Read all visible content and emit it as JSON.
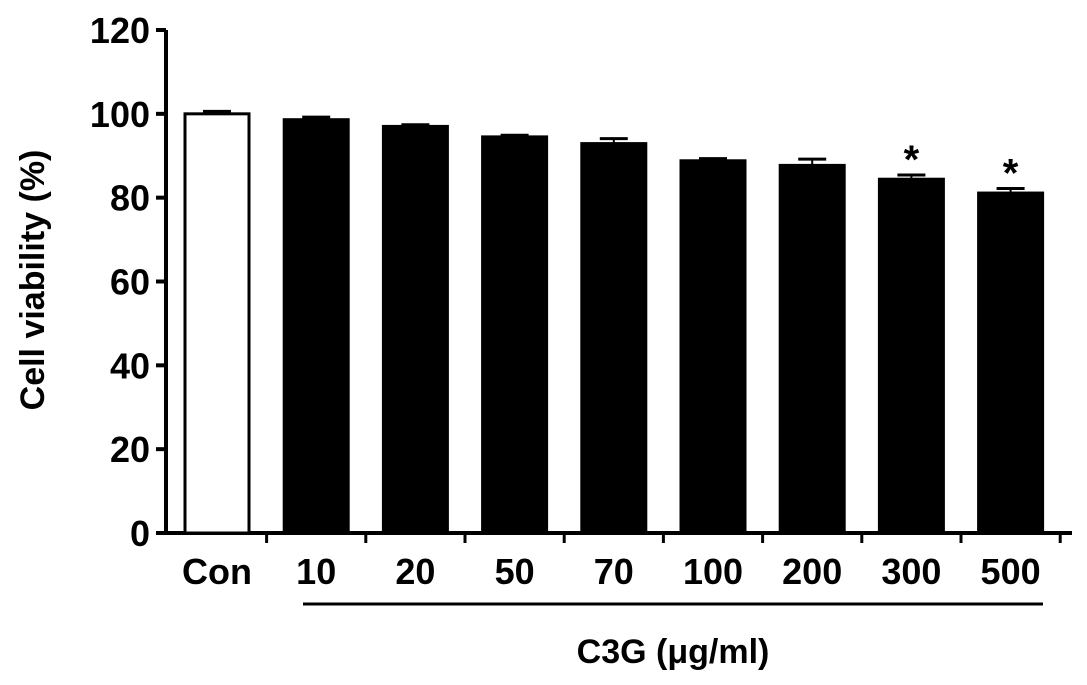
{
  "chart_data": {
    "type": "bar",
    "categories": [
      "Con",
      "10",
      "20",
      "50",
      "70",
      "100",
      "200",
      "300",
      "500"
    ],
    "values": [
      100,
      98.6,
      97.0,
      94.5,
      92.9,
      88.8,
      87.7,
      84.4,
      81.1
    ],
    "errors": [
      0.6,
      0.6,
      0.4,
      0.4,
      1.2,
      0.5,
      1.5,
      1.0,
      1.1
    ],
    "fills": [
      "#ffffff",
      "#000000",
      "#000000",
      "#000000",
      "#000000",
      "#000000",
      "#000000",
      "#000000",
      "#000000"
    ],
    "significance": [
      "",
      "",
      "",
      "",
      "",
      "",
      "",
      "*",
      "*"
    ],
    "ylabel": "Cell viability (%)",
    "xlabel": "C3G (μg/ml)",
    "ylim": [
      0,
      120
    ],
    "yticks": [
      0,
      20,
      40,
      60,
      80,
      100,
      120
    ],
    "grid": false,
    "legend": "none"
  }
}
